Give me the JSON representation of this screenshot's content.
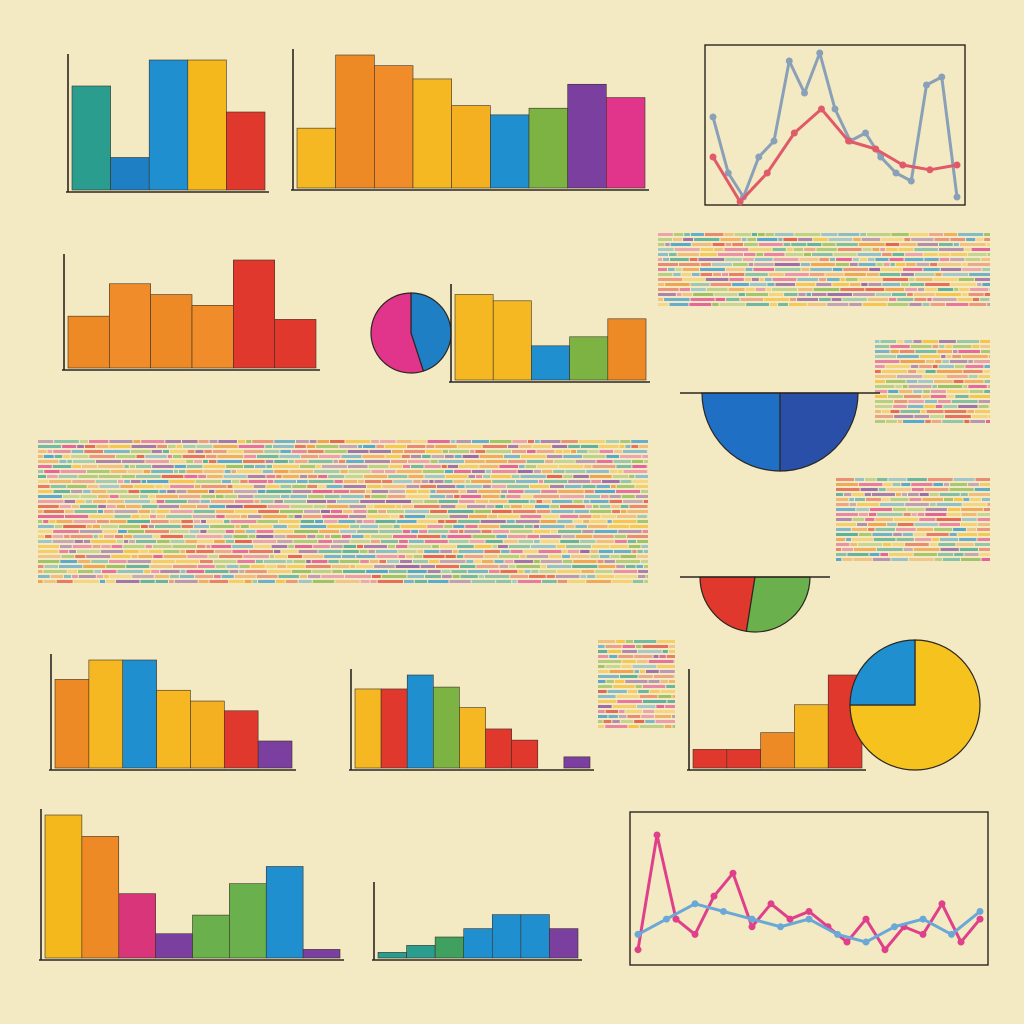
{
  "chart_data": [
    {
      "type": "bar",
      "values": [
        80,
        25,
        100,
        100,
        60
      ],
      "colors": [
        "#2a9d8f",
        "#1f7fc4",
        "#1f8fd0",
        "#f4b81c",
        "#e0382c"
      ],
      "ylim": [
        0,
        100
      ]
    },
    {
      "type": "bar",
      "values": [
        45,
        100,
        92,
        82,
        62,
        55,
        60,
        78,
        68
      ],
      "colors": [
        "#f6b822",
        "#ee8a26",
        "#f08c2a",
        "#f6b822",
        "#f4b020",
        "#1f8fd0",
        "#7cb342",
        "#7b3fa0",
        "#e0358a"
      ],
      "ylim": [
        0,
        100
      ]
    },
    {
      "type": "line",
      "series": [
        {
          "color": "#8aa0b8",
          "values": [
            55,
            20,
            5,
            30,
            40,
            90,
            70,
            95,
            60,
            40,
            45,
            30,
            20,
            15,
            75,
            80,
            5
          ]
        },
        {
          "color": "#e05a6a",
          "values": [
            30,
            2,
            20,
            45,
            60,
            40,
            35,
            25,
            22,
            25
          ]
        }
      ],
      "ylim": [
        0,
        100
      ]
    },
    {
      "type": "bar",
      "values": [
        48,
        78,
        68,
        58,
        100,
        45
      ],
      "colors": [
        "#ee8a26",
        "#f08c2a",
        "#ee8a26",
        "#f08c2a",
        "#e0382c",
        "#e0382c"
      ],
      "ylim": [
        0,
        100
      ]
    },
    {
      "type": "pie",
      "values": [
        45,
        55
      ],
      "colors": [
        "#1f7fc4",
        "#e0358a"
      ]
    },
    {
      "type": "bar",
      "values": [
        95,
        88,
        38,
        48,
        68
      ],
      "colors": [
        "#f6b822",
        "#f6b822",
        "#1f8fd0",
        "#7cb342",
        "#ee8a26"
      ],
      "ylim": [
        0,
        100
      ]
    },
    {
      "type": "pie",
      "half": true,
      "values": [
        50,
        50
      ],
      "colors": [
        "#1f6fc4",
        "#2a4fa8"
      ]
    },
    {
      "type": "pie",
      "half": true,
      "values": [
        45,
        55
      ],
      "colors": [
        "#e0382c",
        "#6ab04c"
      ]
    },
    {
      "type": "bar",
      "values": [
        82,
        100,
        100,
        72,
        62,
        53,
        25
      ],
      "colors": [
        "#ee8a26",
        "#f6b822",
        "#1f8fd0",
        "#f6b822",
        "#f4b020",
        "#e0382c",
        "#7b3fa0"
      ],
      "ylim": [
        0,
        100
      ]
    },
    {
      "type": "bar",
      "values": [
        85,
        85,
        100,
        87,
        65,
        42,
        30,
        0,
        12
      ],
      "colors": [
        "#f6b822",
        "#e0382c",
        "#1f8fd0",
        "#7cb342",
        "#f6b822",
        "#e0382c",
        "#e0382c",
        "#e0382c",
        "#7b3fa0"
      ],
      "ylim": [
        0,
        100
      ]
    },
    {
      "type": "bar",
      "values": [
        20,
        20,
        38,
        68,
        100
      ],
      "colors": [
        "#e0382c",
        "#e0382c",
        "#ee8a26",
        "#f6b822",
        "#e0382c"
      ],
      "ylim": [
        0,
        100
      ]
    },
    {
      "type": "pie",
      "values": [
        75,
        25
      ],
      "colors": [
        "#f6c21e",
        "#1f8fd0"
      ]
    },
    {
      "type": "bar",
      "values": [
        100,
        85,
        45,
        17,
        30,
        52,
        64,
        6
      ],
      "colors": [
        "#f4b81c",
        "#ee8a26",
        "#d8357a",
        "#7b3fa0",
        "#6ab04c",
        "#6ab04c",
        "#1f8fd0",
        "#7b3fa0"
      ],
      "ylim": [
        0,
        100
      ]
    },
    {
      "type": "bar",
      "values": [
        8,
        18,
        30,
        42,
        62,
        62,
        42
      ],
      "colors": [
        "#2a9d8f",
        "#2a9d8f",
        "#3fa060",
        "#1f8fd0",
        "#1f8fd0",
        "#1f8fd0",
        "#7b3fa0"
      ],
      "ylim": [
        0,
        100
      ]
    },
    {
      "type": "line",
      "series": [
        {
          "color": "#e0408a",
          "values": [
            10,
            85,
            30,
            20,
            45,
            60,
            25,
            40,
            30,
            35,
            25,
            15,
            30,
            10,
            25,
            20,
            40,
            15,
            30
          ]
        },
        {
          "color": "#6aa8d8",
          "values": [
            20,
            30,
            40,
            35,
            30,
            25,
            30,
            20,
            15,
            25,
            30,
            20,
            35
          ]
        }
      ],
      "ylim": [
        0,
        100
      ]
    }
  ]
}
